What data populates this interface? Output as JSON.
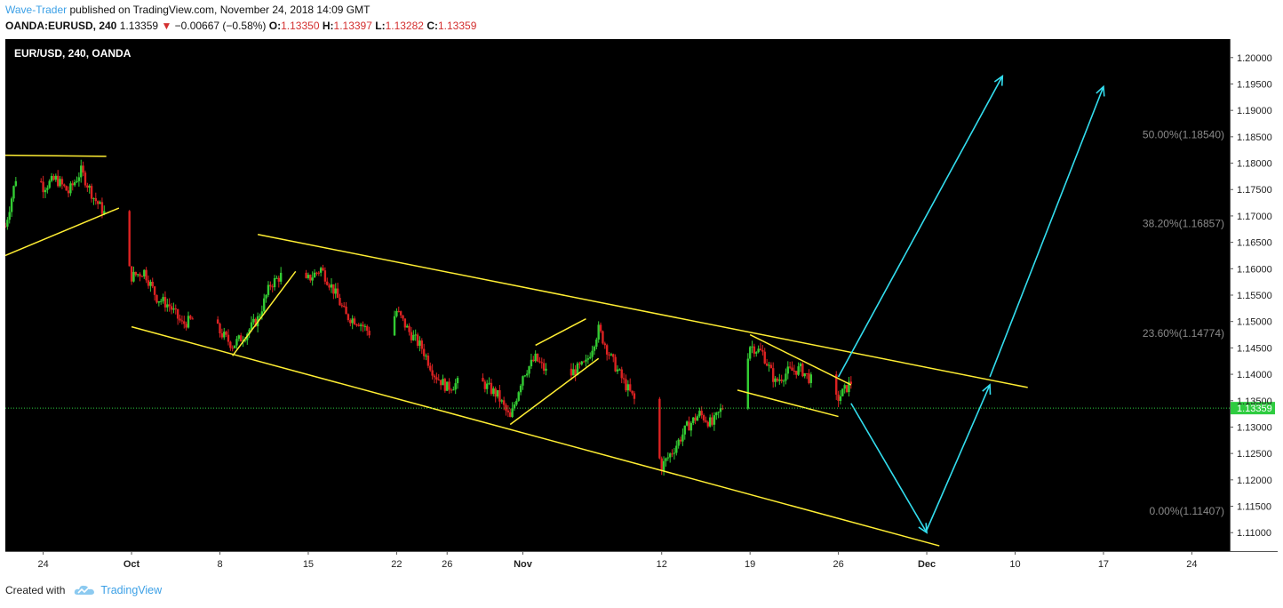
{
  "header": {
    "author": "Wave-Trader",
    "published": "published on TradingView.com, November 24, 2018 14:09 GMT",
    "symbol": "OANDA:EURUSD, 240",
    "last": "1.13359",
    "change": "−0.00667 (−0.58%)",
    "open_label": "O:",
    "open": "1.13350",
    "high_label": "H:",
    "high": "1.13397",
    "low_label": "L:",
    "low": "1.13282",
    "close_label": "C:",
    "close": "1.13359"
  },
  "footer": {
    "created_with": "Created with",
    "brand": "TradingView"
  },
  "colors": {
    "up": "#33cc33",
    "down": "#dd2222",
    "trend": "#ffee33",
    "arrow": "#33ddee",
    "current": "#2ecc40",
    "fib_text": "#8a8a8a"
  },
  "chart_data": {
    "type": "candlestick",
    "title": "EUR/USD, 240, OANDA",
    "ylim": [
      1.1065,
      1.2035
    ],
    "xlim": [
      "2018-09-21",
      "2018-12-27"
    ],
    "x_ticks": [
      {
        "date": "2018-09-24",
        "label": "24"
      },
      {
        "date": "2018-10-01",
        "label": "Oct"
      },
      {
        "date": "2018-10-08",
        "label": "8"
      },
      {
        "date": "2018-10-15",
        "label": "15"
      },
      {
        "date": "2018-10-22",
        "label": "22"
      },
      {
        "date": "2018-10-26",
        "label": "26"
      },
      {
        "date": "2018-11-01",
        "label": "Nov"
      },
      {
        "date": "2018-11-12",
        "label": "12"
      },
      {
        "date": "2018-11-19",
        "label": "19"
      },
      {
        "date": "2018-11-26",
        "label": "26"
      },
      {
        "date": "2018-12-03",
        "label": "Dec"
      },
      {
        "date": "2018-12-10",
        "label": "10"
      },
      {
        "date": "2018-12-17",
        "label": "17"
      },
      {
        "date": "2018-12-24",
        "label": "24"
      }
    ],
    "y_ticks": [
      "1.20000",
      "1.19500",
      "1.19000",
      "1.18500",
      "1.18000",
      "1.17500",
      "1.17000",
      "1.16500",
      "1.16000",
      "1.15500",
      "1.15000",
      "1.14500",
      "1.14000",
      "1.13500",
      "1.13000",
      "1.12500",
      "1.12000",
      "1.11500",
      "1.11000"
    ],
    "current_price": {
      "value": 1.13359,
      "label": "1.13359"
    },
    "fib_levels": [
      {
        "label": "50.00%(1.18540)",
        "value": 1.1854
      },
      {
        "label": "38.20%(1.16857)",
        "value": 1.16857
      },
      {
        "label": "23.60%(1.14774)",
        "value": 1.14774
      },
      {
        "label": "0.00%(1.11407)",
        "value": 1.11407
      }
    ],
    "path_points": [
      [
        "2018-09-21",
        1.168
      ],
      [
        "2018-09-22",
        1.179
      ],
      [
        "2018-09-23",
        1.1805
      ],
      [
        "2018-09-24",
        1.1755
      ],
      [
        "2018-09-25",
        1.177
      ],
      [
        "2018-09-26",
        1.1745
      ],
      [
        "2018-09-27",
        1.1785
      ],
      [
        "2018-09-28",
        1.1735
      ],
      [
        "2018-09-29",
        1.17
      ],
      [
        "2018-09-30",
        1.166
      ],
      [
        "2018-10-01",
        1.1585
      ],
      [
        "2018-10-02",
        1.1595
      ],
      [
        "2018-10-03",
        1.1545
      ],
      [
        "2018-10-04",
        1.153
      ],
      [
        "2018-10-05",
        1.1495
      ],
      [
        "2018-10-06",
        1.1505
      ],
      [
        "2018-10-07",
        1.1515
      ],
      [
        "2018-10-08",
        1.148
      ],
      [
        "2018-10-09",
        1.1455
      ],
      [
        "2018-10-10",
        1.1475
      ],
      [
        "2018-10-11",
        1.1505
      ],
      [
        "2018-10-12",
        1.157
      ],
      [
        "2018-10-13",
        1.159
      ],
      [
        "2018-10-14",
        1.1545
      ],
      [
        "2018-10-15",
        1.158
      ],
      [
        "2018-10-16",
        1.16
      ],
      [
        "2018-10-17",
        1.156
      ],
      [
        "2018-10-18",
        1.151
      ],
      [
        "2018-10-19",
        1.15
      ],
      [
        "2018-10-20",
        1.1475
      ],
      [
        "2018-10-21",
        1.1465
      ],
      [
        "2018-10-22",
        1.152
      ],
      [
        "2018-10-23",
        1.148
      ],
      [
        "2018-10-24",
        1.145
      ],
      [
        "2018-10-25",
        1.14
      ],
      [
        "2018-10-26",
        1.1375
      ],
      [
        "2018-10-27",
        1.1385
      ],
      [
        "2018-10-28",
        1.1395
      ],
      [
        "2018-10-29",
        1.138
      ],
      [
        "2018-10-30",
        1.136
      ],
      [
        "2018-10-31",
        1.1315
      ],
      [
        "2018-11-01",
        1.14
      ],
      [
        "2018-11-02",
        1.143
      ],
      [
        "2018-11-03",
        1.14
      ],
      [
        "2018-11-04",
        1.1375
      ],
      [
        "2018-11-05",
        1.1405
      ],
      [
        "2018-11-06",
        1.142
      ],
      [
        "2018-11-07",
        1.1485
      ],
      [
        "2018-11-08",
        1.143
      ],
      [
        "2018-11-09",
        1.1385
      ],
      [
        "2018-11-10",
        1.1345
      ],
      [
        "2018-11-11",
        1.131
      ],
      [
        "2018-11-12",
        1.1225
      ],
      [
        "2018-11-13",
        1.126
      ],
      [
        "2018-11-14",
        1.13
      ],
      [
        "2018-11-15",
        1.1325
      ],
      [
        "2018-11-16",
        1.1305
      ],
      [
        "2018-11-17",
        1.1345
      ],
      [
        "2018-11-18",
        1.1355
      ],
      [
        "2018-11-19",
        1.1455
      ],
      [
        "2018-11-20",
        1.144
      ],
      [
        "2018-11-21",
        1.1385
      ],
      [
        "2018-11-22",
        1.1405
      ],
      [
        "2018-11-23",
        1.141
      ],
      [
        "2018-11-24",
        1.1385
      ],
      [
        "2018-11-25",
        1.134
      ],
      [
        "2018-11-26",
        1.1355
      ],
      [
        "2018-11-27",
        1.1385
      ]
    ],
    "trendlines": [
      {
        "from": [
          "2018-09-21",
          1.1815
        ],
        "to": [
          "2018-09-29",
          1.1813
        ]
      },
      {
        "from": [
          "2018-09-21",
          1.1625
        ],
        "to": [
          "2018-09-30",
          1.1715
        ]
      },
      {
        "from": [
          "2018-10-01",
          1.149
        ],
        "to": [
          "2018-12-04",
          1.1075
        ]
      },
      {
        "from": [
          "2018-10-11",
          1.1665
        ],
        "to": [
          "2018-12-11",
          1.1375
        ]
      },
      {
        "from": [
          "2018-10-09",
          1.1435
        ],
        "to": [
          "2018-10-14",
          1.1595
        ]
      },
      {
        "from": [
          "2018-10-31",
          1.1305
        ],
        "to": [
          "2018-11-07",
          1.143
        ]
      },
      {
        "from": [
          "2018-11-02",
          1.1455
        ],
        "to": [
          "2018-11-06",
          1.1505
        ]
      },
      {
        "from": [
          "2018-11-19",
          1.1475
        ],
        "to": [
          "2018-11-27",
          1.138
        ]
      },
      {
        "from": [
          "2018-11-18",
          1.137
        ],
        "to": [
          "2018-11-26",
          1.132
        ]
      }
    ],
    "arrows": [
      {
        "from": [
          "2018-11-26",
          1.1395
        ],
        "to": [
          "2018-12-09",
          1.1965
        ]
      },
      {
        "from": [
          "2018-11-27",
          1.1345
        ],
        "to": [
          "2018-12-03",
          1.11
        ]
      },
      {
        "from": [
          "2018-12-03",
          1.1105
        ],
        "to": [
          "2018-12-08",
          1.138
        ]
      },
      {
        "from": [
          "2018-12-08",
          1.1395
        ],
        "to": [
          "2018-12-17",
          1.1945
        ]
      }
    ]
  }
}
